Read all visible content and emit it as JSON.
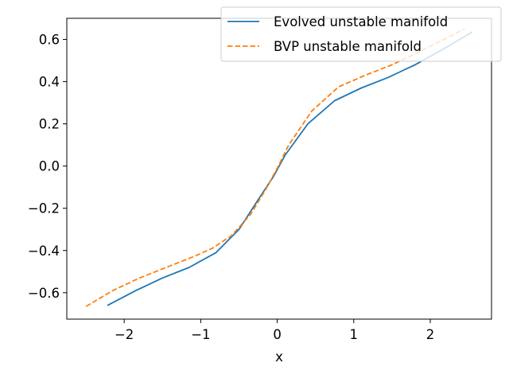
{
  "chart_data": {
    "type": "line",
    "title": "",
    "xlabel": "x",
    "ylabel": "",
    "xlim": [
      -2.75,
      2.8
    ],
    "ylim": [
      -0.725,
      0.7
    ],
    "xticks": [
      -2,
      -1,
      0,
      1,
      2
    ],
    "yticks": [
      -0.6,
      -0.4,
      -0.2,
      0.0,
      0.2,
      0.4,
      0.6
    ],
    "xtick_labels": [
      "−2",
      "−1",
      "0",
      "1",
      "2"
    ],
    "ytick_labels": [
      "−0.6",
      "−0.4",
      "−0.2",
      "0.0",
      "0.2",
      "0.4",
      "0.6"
    ],
    "grid": false,
    "legend_position": "top-right",
    "series": [
      {
        "name": "Evolved unstable manifold",
        "color": "#1f77b4",
        "style": "solid",
        "x": [
          -2.22,
          -1.85,
          -1.5,
          -1.15,
          -0.8,
          -0.5,
          -0.25,
          -0.05,
          0.1,
          0.4,
          0.75,
          1.1,
          1.45,
          1.8,
          2.15,
          2.55
        ],
        "y": [
          -0.66,
          -0.59,
          -0.53,
          -0.48,
          -0.41,
          -0.3,
          -0.16,
          -0.05,
          0.05,
          0.2,
          0.31,
          0.37,
          0.42,
          0.48,
          0.55,
          0.635
        ]
      },
      {
        "name": "BVP unstable manifold",
        "color": "#ff7f0e",
        "style": "dashed",
        "x": [
          -2.5,
          -2.15,
          -1.8,
          -1.45,
          -1.1,
          -0.85,
          -0.6,
          -0.35,
          -0.15,
          0.0,
          0.15,
          0.45,
          0.8,
          1.15,
          1.5,
          1.85,
          2.15,
          2.45
        ],
        "y": [
          -0.665,
          -0.59,
          -0.53,
          -0.48,
          -0.43,
          -0.39,
          -0.33,
          -0.23,
          -0.11,
          -0.01,
          0.1,
          0.26,
          0.375,
          0.43,
          0.48,
          0.54,
          0.595,
          0.65
        ]
      }
    ]
  }
}
